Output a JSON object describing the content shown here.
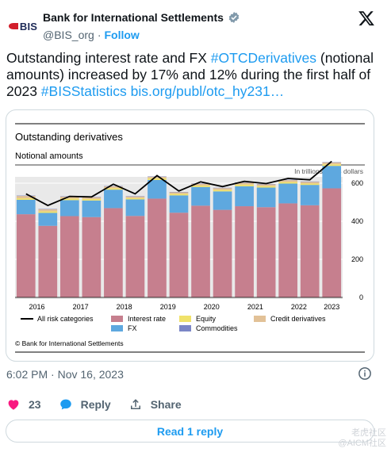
{
  "account": {
    "avatar_text": "BIS",
    "display_name": "Bank for International Settlements",
    "handle": "@BIS_org",
    "separator": "·",
    "follow_label": "Follow"
  },
  "tweet": {
    "text_part1": "Outstanding interest rate and FX ",
    "hashtag1": "#OTCDerivatives",
    "text_part2": " (notional amounts) increased by 17% and 12% during the first half of 2023 ",
    "hashtag2": "#BISStatistics",
    "text_part3": " ",
    "link": "bis.org/publ/otc_hy231…"
  },
  "chart_data": {
    "type": "bar",
    "title": "Outstanding derivatives",
    "subtitle": "Notional amounts",
    "unit_label": "In trillions of US dollars",
    "x_tick_labels": [
      "2016",
      "2017",
      "2018",
      "2019",
      "2020",
      "2021",
      "2022",
      "2023"
    ],
    "categories": [
      "H1 2016",
      "H2 2016",
      "H1 2017",
      "H2 2017",
      "H1 2018",
      "H2 2018",
      "H1 2019",
      "H2 2019",
      "H1 2020",
      "H2 2020",
      "H1 2021",
      "H2 2021",
      "H1 2022",
      "H2 2022",
      "H1 2023"
    ],
    "series": [
      {
        "name": "Interest rate",
        "values": [
          437,
          376,
          427,
          422,
          469,
          428,
          519,
          445,
          482,
          460,
          479,
          474,
          494,
          484,
          573
        ],
        "color": "#c67f8e"
      },
      {
        "name": "FX",
        "values": [
          76,
          68,
          84,
          87,
          97,
          87,
          98,
          91,
          98,
          97,
          105,
          103,
          104,
          107,
          118
        ],
        "color": "#5ea8df"
      },
      {
        "name": "Equity",
        "values": [
          8,
          8,
          8,
          8,
          8,
          7,
          9,
          8,
          8,
          8,
          9,
          8,
          8,
          7,
          8
        ],
        "color": "#f0e26a"
      },
      {
        "name": "Credit derivatives",
        "values": [
          12,
          11,
          10,
          9,
          9,
          8,
          8,
          8,
          9,
          9,
          9,
          9,
          10,
          9,
          10
        ],
        "color": "#e2c197"
      },
      {
        "name": "Commodities",
        "values": [
          2,
          2,
          2,
          2,
          2,
          2,
          2,
          2,
          2,
          2,
          2,
          2,
          2,
          2,
          2
        ],
        "color": "#7b86c6"
      }
    ],
    "line": {
      "name": "All risk categories",
      "values": [
        544,
        483,
        531,
        528,
        595,
        544,
        640,
        559,
        607,
        582,
        610,
        598,
        625,
        618,
        715
      ],
      "color": "#000000"
    },
    "y_ticks": [
      0,
      200,
      400,
      600
    ],
    "ylim": [
      0,
      800
    ],
    "grid": true,
    "legend_position": "bottom",
    "source": "© Bank for International Settlements"
  },
  "meta": {
    "timestamp": "6:02 PM · Nov 16, 2023"
  },
  "actions": {
    "like_count": "23",
    "reply_label": "Reply",
    "share_label": "Share",
    "read_reply_label": "Read 1 reply"
  },
  "watermark": {
    "line1": "老虎社区",
    "line2": "@AICM社区"
  }
}
